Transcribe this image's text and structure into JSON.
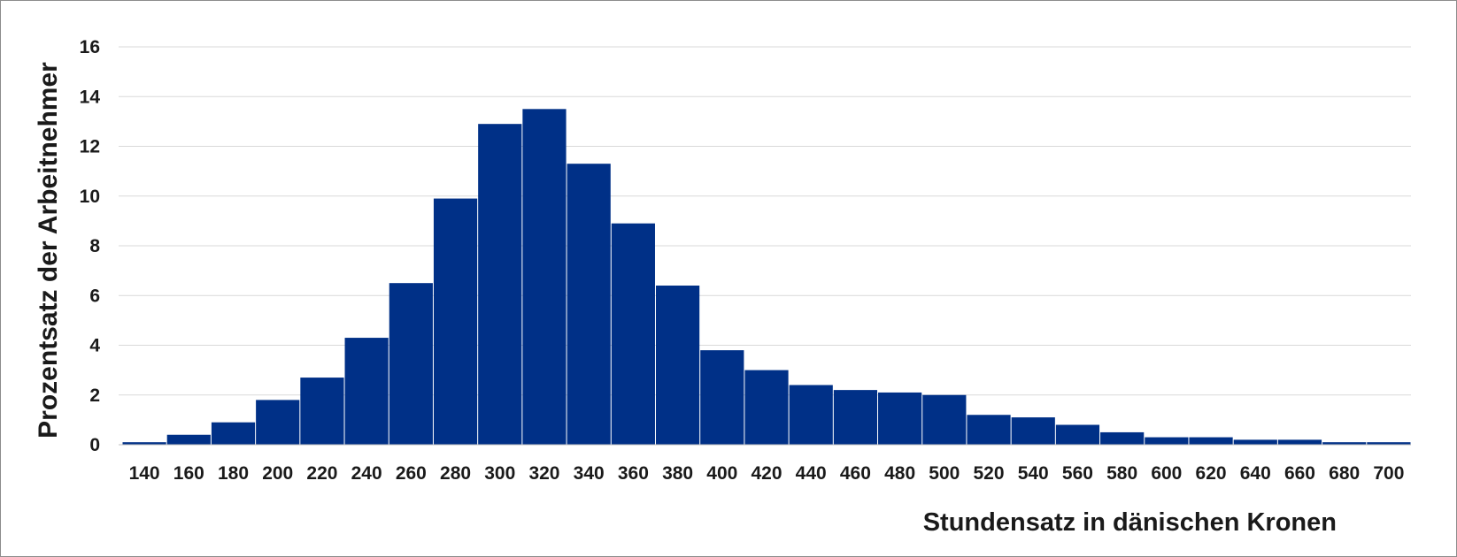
{
  "chart_data": {
    "type": "bar",
    "categories": [
      "140",
      "160",
      "180",
      "200",
      "220",
      "240",
      "260",
      "280",
      "300",
      "320",
      "340",
      "360",
      "380",
      "400",
      "420",
      "440",
      "460",
      "480",
      "500",
      "520",
      "540",
      "560",
      "580",
      "600",
      "620",
      "640",
      "660",
      "680",
      "700"
    ],
    "values": [
      0.1,
      0.4,
      0.9,
      1.8,
      2.7,
      4.3,
      6.5,
      9.9,
      12.9,
      13.5,
      11.3,
      8.9,
      6.4,
      3.8,
      3.0,
      2.4,
      2.2,
      2.1,
      2.0,
      1.2,
      1.1,
      0.8,
      0.5,
      0.3,
      0.3,
      0.2,
      0.2,
      0.1,
      0.1
    ],
    "title": "",
    "xlabel": "Stundensatz in dänischen Kronen",
    "ylabel": "Prozentsatz der Arbeitnehmer",
    "ylim": [
      0,
      16
    ],
    "yticks": [
      0,
      2,
      4,
      6,
      8,
      10,
      12,
      14,
      16
    ],
    "grid": true,
    "bar_color": "#003087"
  }
}
